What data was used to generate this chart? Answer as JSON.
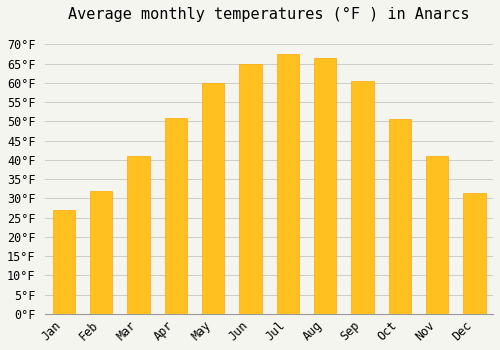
{
  "title": "Average monthly temperatures (°F ) in Anarcs",
  "months": [
    "Jan",
    "Feb",
    "Mar",
    "Apr",
    "May",
    "Jun",
    "Jul",
    "Aug",
    "Sep",
    "Oct",
    "Nov",
    "Dec"
  ],
  "values": [
    27,
    32,
    41,
    51,
    60,
    65,
    67.5,
    66.5,
    60.5,
    50.5,
    41,
    31.5
  ],
  "bar_color": "#FFC020",
  "bar_edge_color": "#FFA500",
  "background_color": "#F5F5F0",
  "grid_color": "#CCCCCC",
  "ylim": [
    0,
    73
  ],
  "ytick_step": 5,
  "title_fontsize": 11,
  "tick_fontsize": 8.5,
  "font_family": "monospace"
}
